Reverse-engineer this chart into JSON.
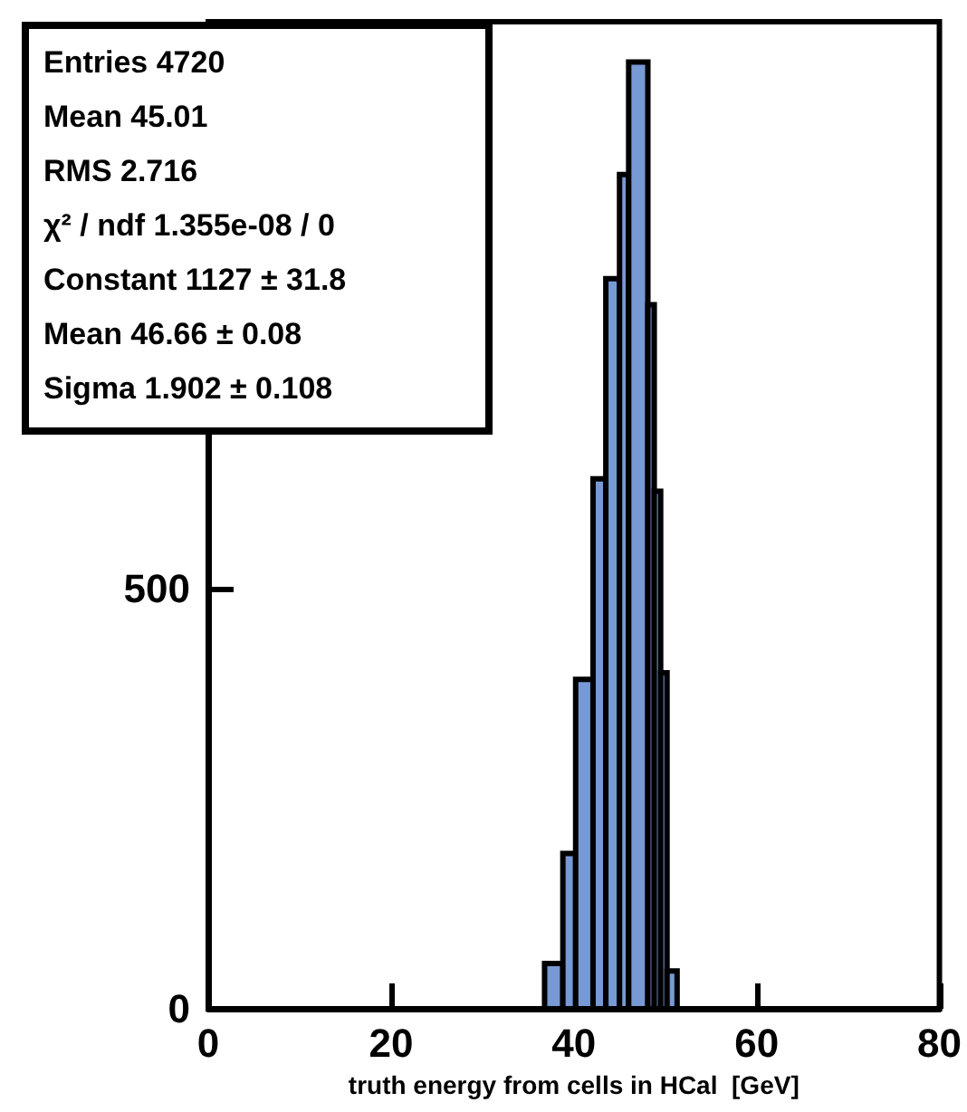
{
  "chart_data": {
    "type": "histogram",
    "xlabel": "truth energy from cells in HCal  [GeV]",
    "bins": [
      36.8,
      38.8,
      40.2,
      42.1,
      43.5,
      45,
      46,
      48.1,
      48.8,
      49.5,
      50.2,
      51.3
    ],
    "values": [
      54,
      185,
      392,
      631,
      869,
      993,
      1127,
      838,
      616,
      400,
      45
    ],
    "color": "#7799d4",
    "xlim": [
      0,
      80
    ],
    "xticks": [
      0,
      20,
      40,
      60,
      80
    ],
    "ylim": [
      0,
      1175
    ],
    "yticks": [
      0,
      500
    ],
    "grid": false,
    "annotations": [
      "Entries 4720",
      "Mean 45.01",
      "RMS 2.716",
      "χ² / ndf 1.355e-08 / 0",
      "Constant 1127 ± 31.8",
      "Mean 46.66 ± 0.08",
      "Sigma 1.902 ± 0.108"
    ]
  }
}
